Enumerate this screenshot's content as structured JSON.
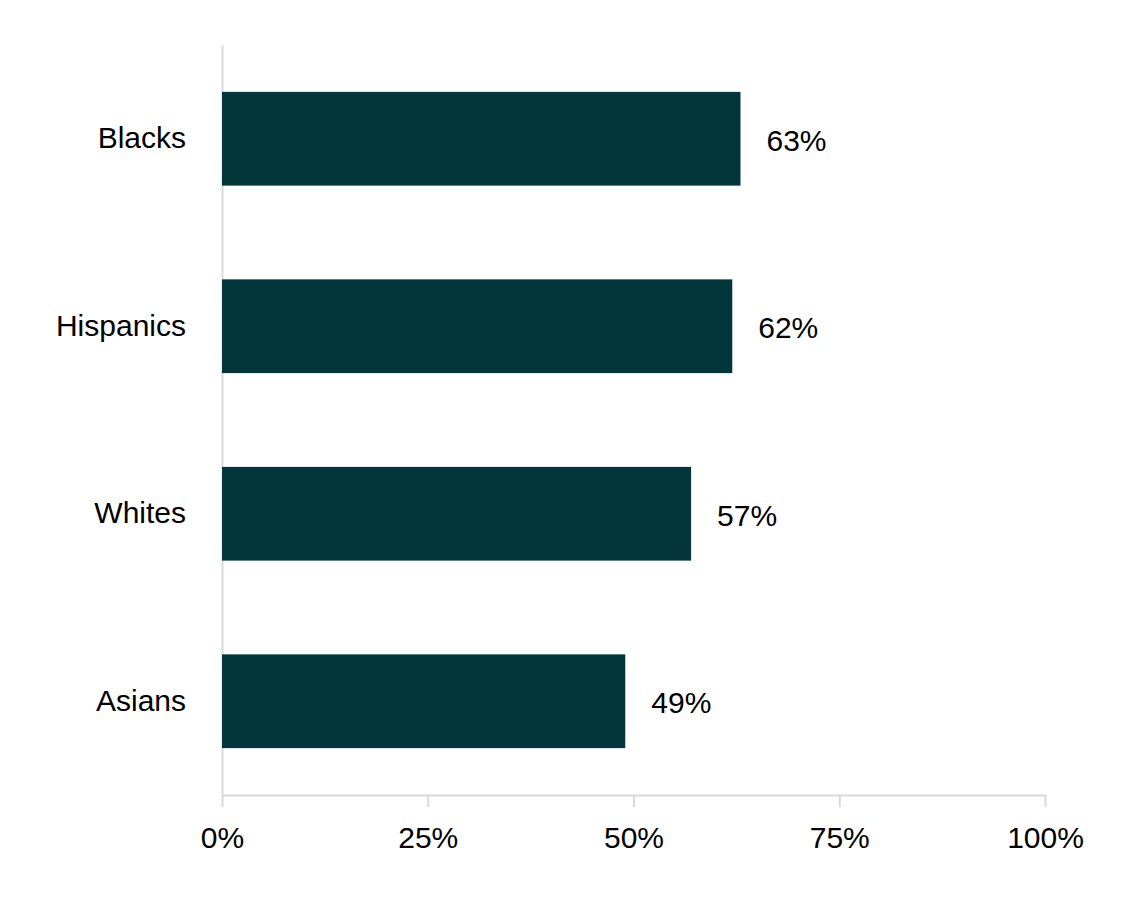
{
  "chart_data": {
    "type": "bar",
    "orientation": "horizontal",
    "categories": [
      "Blacks",
      "Hispanics",
      "Whites",
      "Asians"
    ],
    "values": [
      63,
      62,
      57,
      49
    ],
    "value_labels": [
      "63%",
      "62%",
      "57%",
      "49%"
    ],
    "data_labels": true,
    "color": "#02363a",
    "xlim": [
      0,
      100
    ],
    "xticks": [
      {
        "value": 0,
        "label": "0%"
      },
      {
        "value": 25,
        "label": "25%"
      },
      {
        "value": 50,
        "label": "50%"
      },
      {
        "value": 75,
        "label": "75%"
      },
      {
        "value": 100,
        "label": "100%"
      }
    ],
    "grid": false
  }
}
